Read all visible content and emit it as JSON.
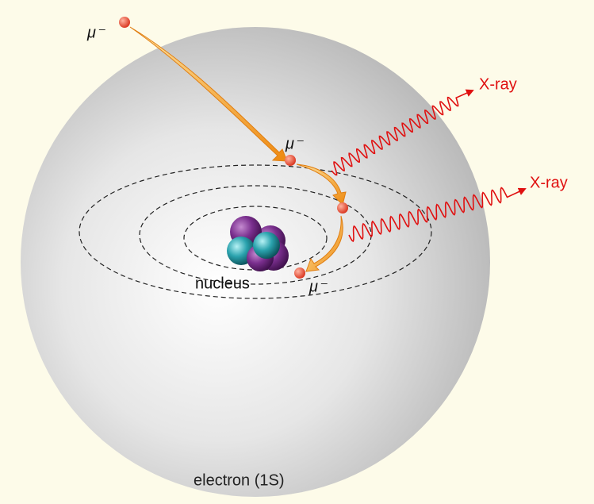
{
  "labels": {
    "muon_start": "μ⁻",
    "muon_middle": "μ⁻",
    "muon_end": "μ⁻",
    "xray_upper": "X-ray",
    "xray_lower": "X-ray",
    "nucleus": "nucleus",
    "electron": "electron (1S)"
  }
}
